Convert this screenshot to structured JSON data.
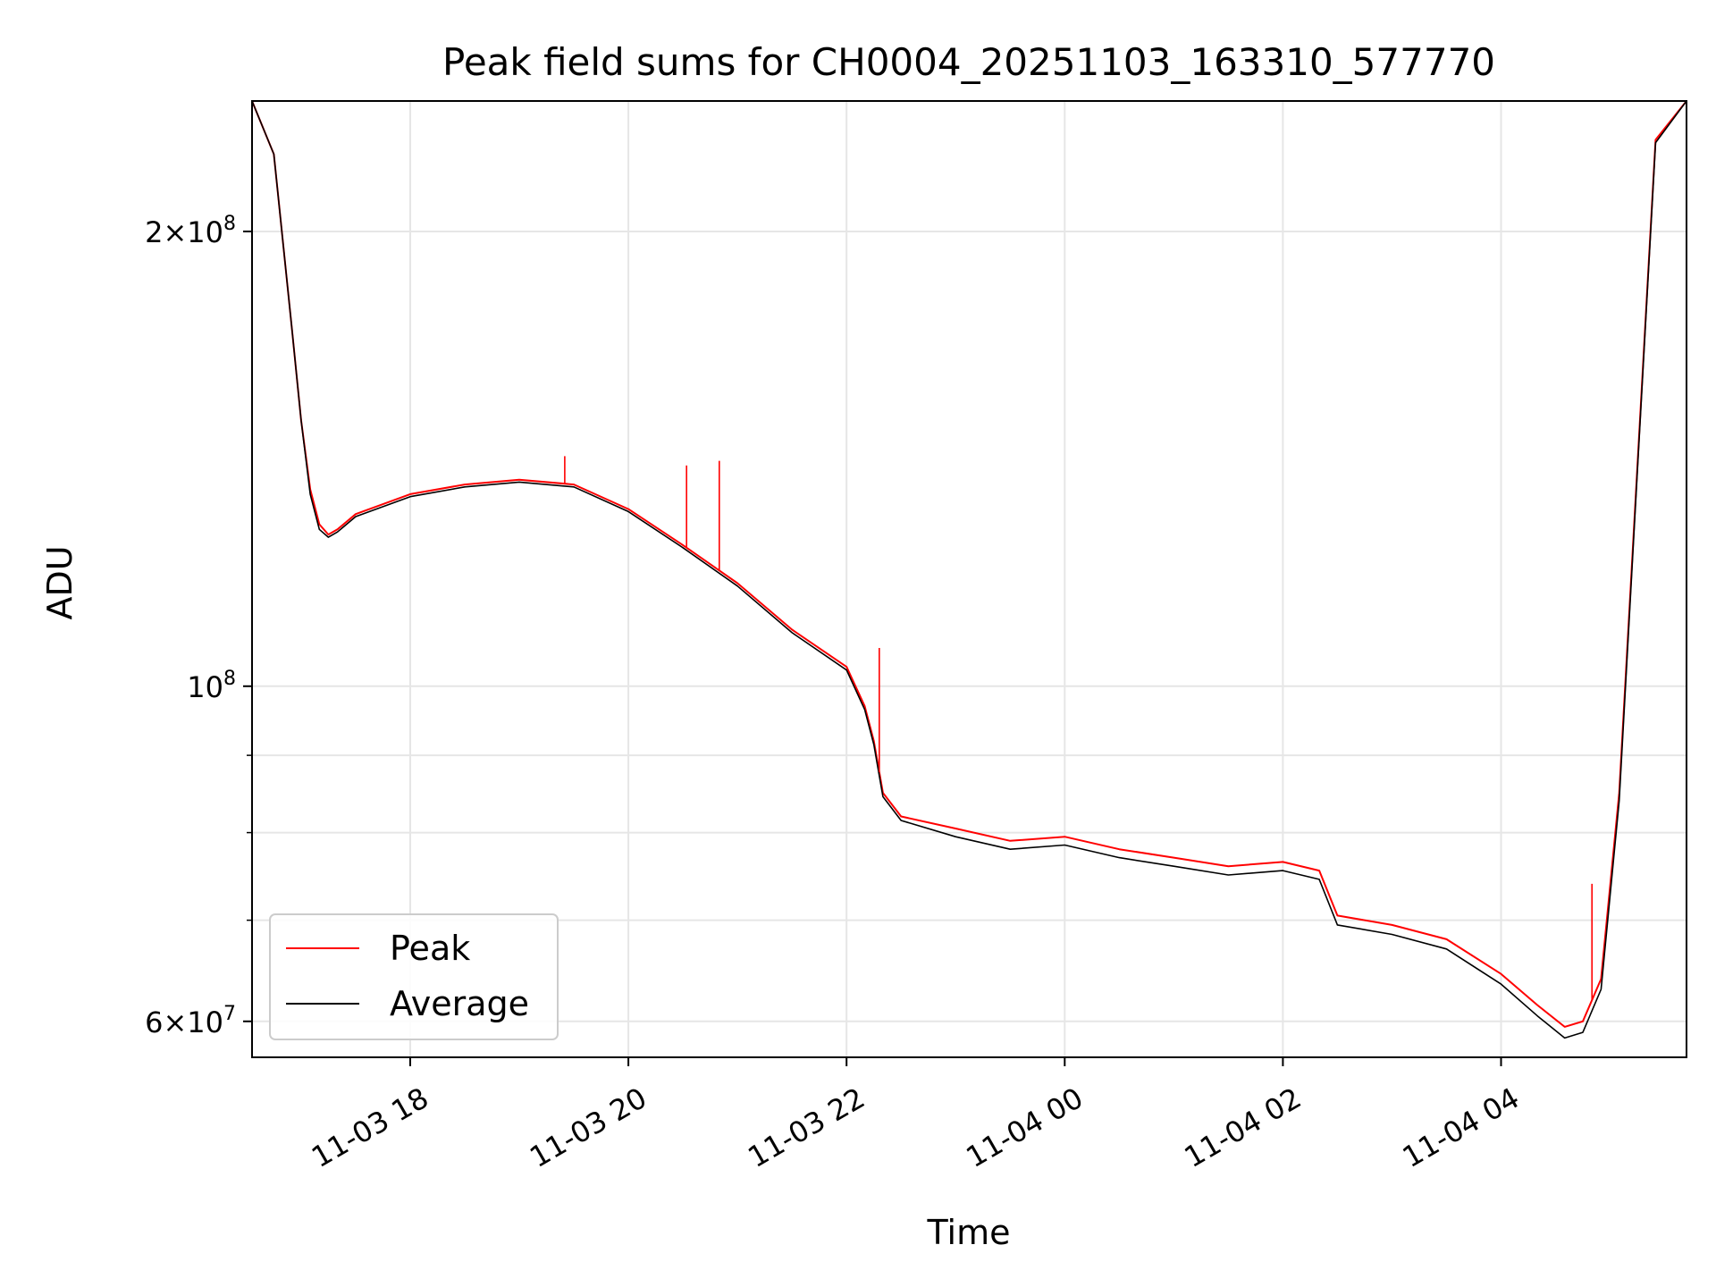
{
  "chart_data": {
    "type": "line",
    "title": "Peak field sums for CH0004_20251103_163310_577770",
    "xlabel": "Time",
    "ylabel": "ADU",
    "y_scale": "log",
    "xlim": [
      "2025-11-03 16:33",
      "2025-11-04 05:42"
    ],
    "ylim": [
      56800000,
      244000000
    ],
    "grid": true,
    "legend_position": "lower-left",
    "x_tick_labels": [
      "11-03 18",
      "11-03 20",
      "11-03 22",
      "11-04 00",
      "11-04 02",
      "11-04 04"
    ],
    "x_ticks": [
      "2025-11-03 18:00",
      "2025-11-03 20:00",
      "2025-11-03 22:00",
      "2025-11-04 00:00",
      "2025-11-04 02:00",
      "2025-11-04 04:00"
    ],
    "y_tick_labels": [
      {
        "value": 200000000,
        "mant": "2",
        "times": "×",
        "base": "10",
        "exp": "8"
      },
      {
        "value": 100000000,
        "mant": "",
        "times": "",
        "base": "10",
        "exp": "8"
      },
      {
        "value": 60000000,
        "mant": "6",
        "times": "×",
        "base": "10",
        "exp": "7"
      }
    ],
    "y_minor_ticks": [
      70000000,
      80000000,
      90000000
    ],
    "series": [
      {
        "name": "Peak",
        "color": "#ff0000",
        "x": [
          "2025-11-03 16:33",
          "2025-11-03 16:45",
          "2025-11-03 16:55",
          "2025-11-03 17:00",
          "2025-11-03 17:05",
          "2025-11-03 17:10",
          "2025-11-03 17:15",
          "2025-11-03 17:20",
          "2025-11-03 17:30",
          "2025-11-03 18:00",
          "2025-11-03 18:30",
          "2025-11-03 19:00",
          "2025-11-03 19:30",
          "2025-11-03 20:00",
          "2025-11-03 20:30",
          "2025-11-03 21:00",
          "2025-11-03 21:30",
          "2025-11-03 22:00",
          "2025-11-03 22:10",
          "2025-11-03 22:15",
          "2025-11-03 22:20",
          "2025-11-03 22:30",
          "2025-11-03 23:00",
          "2025-11-03 23:30",
          "2025-11-04 00:00",
          "2025-11-04 00:30",
          "2025-11-04 01:00",
          "2025-11-04 01:30",
          "2025-11-04 02:00",
          "2025-11-04 02:20",
          "2025-11-04 02:30",
          "2025-11-04 03:00",
          "2025-11-04 03:30",
          "2025-11-04 04:00",
          "2025-11-04 04:20",
          "2025-11-04 04:35",
          "2025-11-04 04:45",
          "2025-11-04 04:55",
          "2025-11-04 05:05",
          "2025-11-04 05:15",
          "2025-11-04 05:25",
          "2025-11-04 05:42"
        ],
        "y": [
          244000000,
          225000000,
          172000000,
          150000000,
          135000000,
          128000000,
          126000000,
          127000000,
          130000000,
          134000000,
          136000000,
          137000000,
          136000000,
          131000000,
          124000000,
          117000000,
          109000000,
          103000000,
          97000000,
          92000000,
          85000000,
          82000000,
          80500000,
          79000000,
          79500000,
          78000000,
          77000000,
          76000000,
          76500000,
          75500000,
          70500000,
          69500000,
          68000000,
          64500000,
          61500000,
          59500000,
          60000000,
          64000000,
          85000000,
          140000000,
          230000000,
          244000000
        ]
      },
      {
        "name": "Average",
        "color": "#000000",
        "x": [
          "2025-11-03 16:33",
          "2025-11-03 16:45",
          "2025-11-03 16:55",
          "2025-11-03 17:00",
          "2025-11-03 17:05",
          "2025-11-03 17:10",
          "2025-11-03 17:15",
          "2025-11-03 17:20",
          "2025-11-03 17:30",
          "2025-11-03 18:00",
          "2025-11-03 18:30",
          "2025-11-03 19:00",
          "2025-11-03 19:30",
          "2025-11-03 20:00",
          "2025-11-03 20:30",
          "2025-11-03 21:00",
          "2025-11-03 21:30",
          "2025-11-03 22:00",
          "2025-11-03 22:10",
          "2025-11-03 22:15",
          "2025-11-03 22:20",
          "2025-11-03 22:30",
          "2025-11-03 23:00",
          "2025-11-03 23:30",
          "2025-11-04 00:00",
          "2025-11-04 00:30",
          "2025-11-04 01:00",
          "2025-11-04 01:30",
          "2025-11-04 02:00",
          "2025-11-04 02:20",
          "2025-11-04 02:30",
          "2025-11-04 03:00",
          "2025-11-04 03:30",
          "2025-11-04 04:00",
          "2025-11-04 04:20",
          "2025-11-04 04:35",
          "2025-11-04 04:45",
          "2025-11-04 04:55",
          "2025-11-04 05:05",
          "2025-11-04 05:15",
          "2025-11-04 05:25",
          "2025-11-04 05:42"
        ],
        "y": [
          244000000,
          225000000,
          172000000,
          150000000,
          134000000,
          127000000,
          125500000,
          126500000,
          129500000,
          133500000,
          135500000,
          136500000,
          135500000,
          130500000,
          123500000,
          116500000,
          108500000,
          102500000,
          96500000,
          91500000,
          84500000,
          81500000,
          79500000,
          78000000,
          78500000,
          77000000,
          76000000,
          75000000,
          75500000,
          74500000,
          69500000,
          68500000,
          67000000,
          63500000,
          60500000,
          58500000,
          59000000,
          63000000,
          84000000,
          139000000,
          229000000,
          244000000
        ]
      }
    ],
    "spikes": [
      {
        "series": "Peak",
        "x": "2025-11-03 19:25",
        "y": 142000000
      },
      {
        "series": "Peak",
        "x": "2025-11-03 20:32",
        "y": 140000000
      },
      {
        "series": "Peak",
        "x": "2025-11-03 20:50",
        "y": 141000000
      },
      {
        "series": "Peak",
        "x": "2025-11-03 22:18",
        "y": 106000000
      },
      {
        "series": "Peak",
        "x": "2025-11-04 04:50",
        "y": 74000000
      }
    ]
  }
}
